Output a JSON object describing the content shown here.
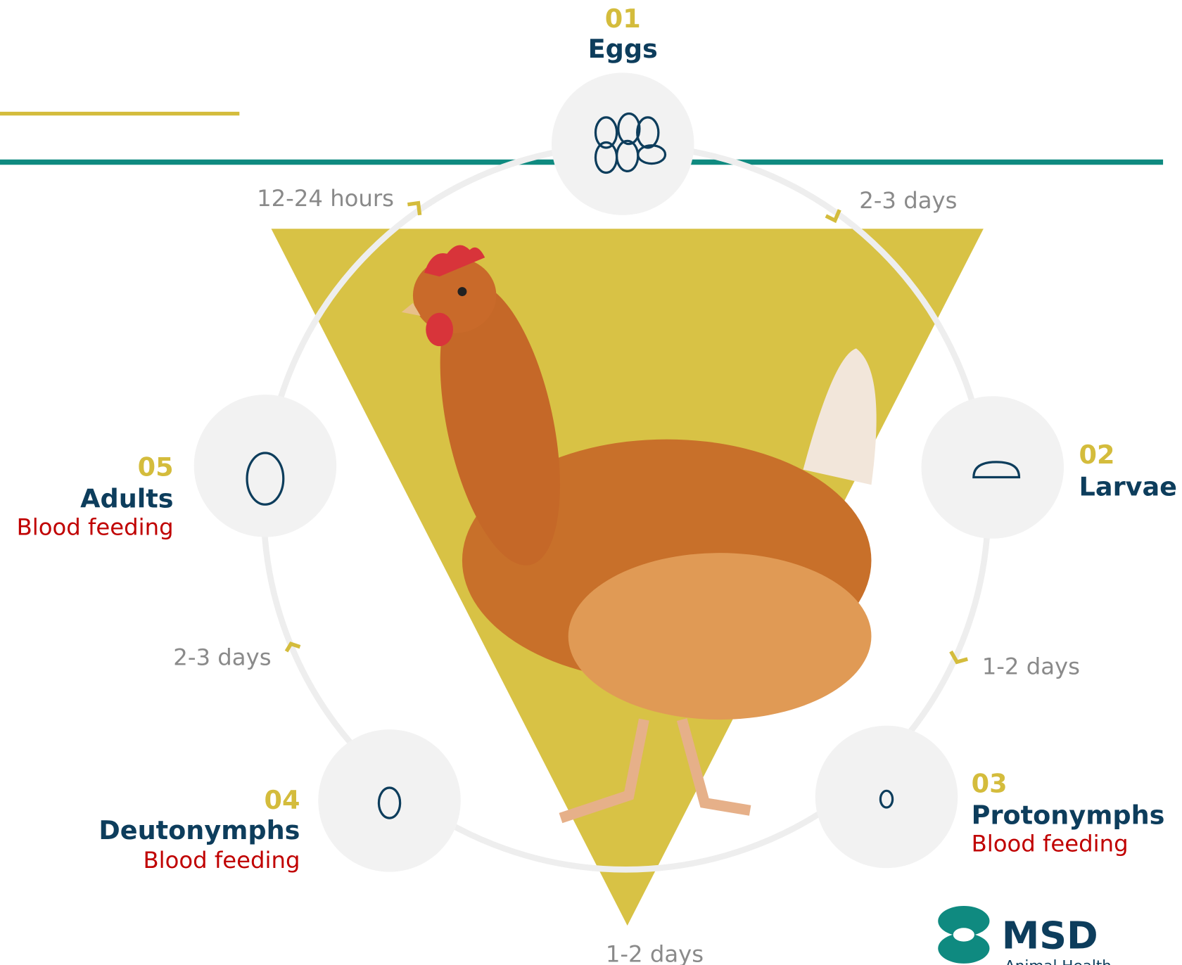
{
  "stages": [
    {
      "number": "01",
      "name": "Eggs"
    },
    {
      "number": "02",
      "name": "Larvae"
    },
    {
      "number": "03",
      "name": "Protonymphs",
      "note": "Blood feeding"
    },
    {
      "number": "04",
      "name": "Deutonymphs",
      "note": "Blood feeding"
    },
    {
      "number": "05",
      "name": "Adults",
      "note": "Blood feeding"
    }
  ],
  "durations": [
    "2-3 days",
    "1-2 days",
    "1-2 days",
    "2-3 days",
    "12-24 hours"
  ],
  "logo": {
    "brand": "MSD",
    "sub": "Animal Health"
  }
}
